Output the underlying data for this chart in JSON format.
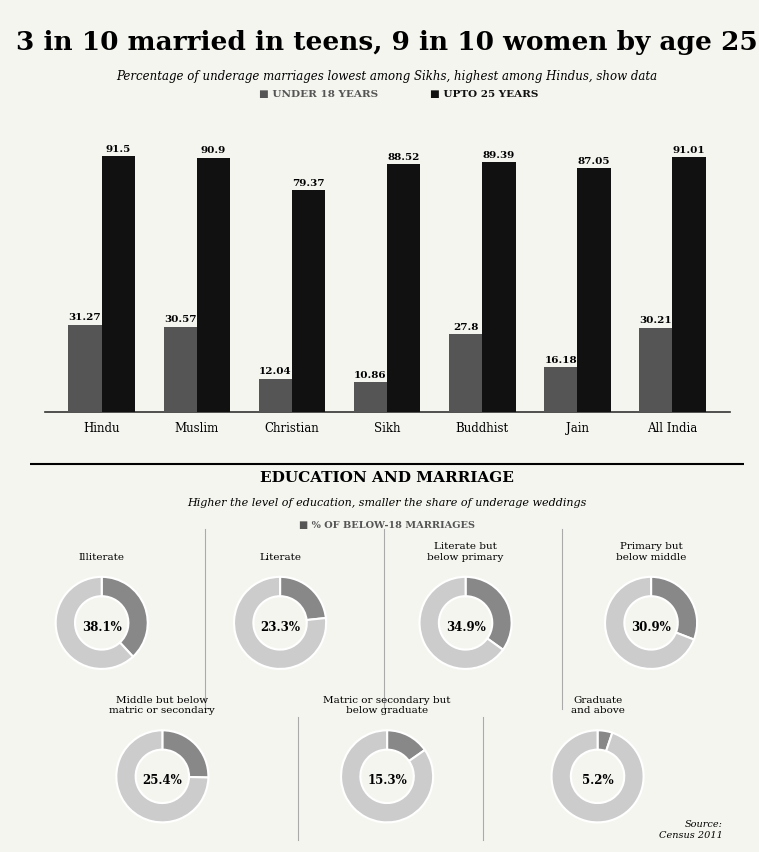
{
  "title": "3 in 10 married in teens, 9 in 10 women by age 25",
  "subtitle": "Percentage of underage marriages lowest among Sikhs, highest among Hindus, show data",
  "categories": [
    "Hindu",
    "Muslim",
    "Christian",
    "Sikh",
    "Buddhist",
    "Jain",
    "All India"
  ],
  "under18": [
    31.27,
    30.57,
    12.04,
    10.86,
    27.8,
    16.18,
    30.21
  ],
  "upto25": [
    91.5,
    90.9,
    79.37,
    88.52,
    89.39,
    87.05,
    91.01
  ],
  "bar_color_under18": "#555555",
  "bar_color_upto25": "#111111",
  "edu_title": "EDUCATION AND MARRIAGE",
  "edu_subtitle": "Higher the level of education, smaller the share of underage weddings",
  "edu_legend": "■ % OF BELOW-18 MARRIAGES",
  "edu_labels": [
    "Illiterate",
    "Literate",
    "Literate but\nbelow primary",
    "Primary but\nbelow middle",
    "Middle but below\nmatric or secondary",
    "Matric or secondary but\nbelow graduate",
    "Graduate\nand above"
  ],
  "edu_values": [
    38.1,
    23.3,
    34.9,
    30.9,
    25.4,
    15.3,
    5.2
  ],
  "donut_color_filled": "#888888",
  "donut_color_empty": "#cccccc",
  "source_text": "Source:\nCensus 2011",
  "background_color": "#f5f5f0"
}
